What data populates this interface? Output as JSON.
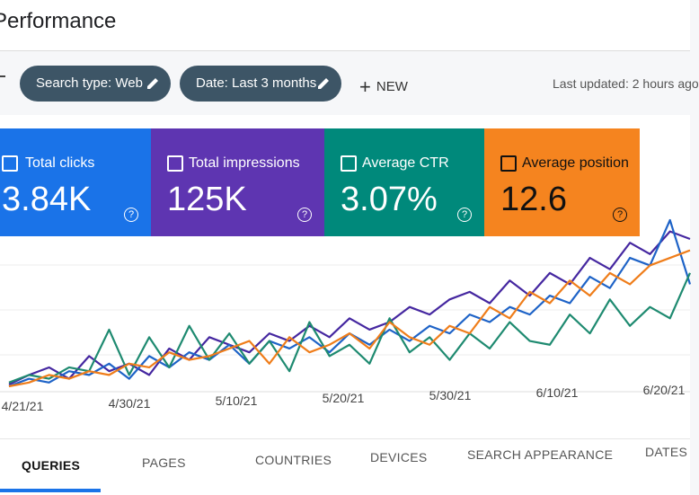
{
  "header": {
    "title": "Performance"
  },
  "filters": [
    "Search type: Web",
    "Date: Last 3 months"
  ],
  "new_button": "NEW",
  "last_updated": "Last updated: 2 hours ago",
  "metrics": [
    {
      "label": "Total clicks",
      "value": "3.84K",
      "color": "#1a73e8"
    },
    {
      "label": "Total impressions",
      "value": "125K",
      "color": "#5e35b1"
    },
    {
      "label": "Average CTR",
      "value": "3.07%",
      "color": "#00897b"
    },
    {
      "label": "Average position",
      "value": "12.6",
      "color": "#f5841f"
    }
  ],
  "chart_data": {
    "type": "line",
    "xticks": [
      "4/21/21",
      "4/30/21",
      "5/10/21",
      "5/20/21",
      "5/30/21",
      "6/10/21",
      "6/20/21"
    ],
    "series": [
      {
        "name": "Total impressions",
        "color": "#4527a0",
        "values": [
          3,
          8,
          12,
          6,
          18,
          10,
          14,
          8,
          22,
          16,
          28,
          24,
          20,
          30,
          26,
          34,
          28,
          38,
          32,
          36,
          44,
          40,
          48,
          52,
          46,
          58,
          50,
          62,
          56,
          70,
          64,
          78,
          72,
          84,
          80
        ]
      },
      {
        "name": "Total clicks",
        "color": "#1e63c7",
        "values": [
          2,
          6,
          4,
          10,
          8,
          14,
          6,
          18,
          12,
          20,
          16,
          24,
          14,
          26,
          22,
          28,
          20,
          30,
          24,
          32,
          26,
          34,
          30,
          40,
          36,
          44,
          40,
          50,
          46,
          60,
          54,
          70,
          66,
          90,
          56
        ]
      },
      {
        "name": "Average CTR",
        "color": "#1e8a70",
        "values": [
          4,
          8,
          6,
          12,
          10,
          32,
          8,
          28,
          12,
          34,
          16,
          30,
          14,
          26,
          10,
          36,
          18,
          24,
          14,
          38,
          20,
          28,
          16,
          30,
          22,
          36,
          26,
          24,
          40,
          30,
          48,
          34,
          44,
          38,
          62
        ]
      },
      {
        "name": "Average position",
        "color": "#ef7d1a",
        "values": [
          2,
          4,
          8,
          6,
          10,
          8,
          14,
          12,
          20,
          16,
          18,
          22,
          26,
          14,
          28,
          20,
          24,
          30,
          22,
          36,
          28,
          24,
          34,
          30,
          44,
          38,
          52,
          46,
          58,
          50,
          62,
          56,
          66,
          70,
          74
        ]
      }
    ]
  },
  "tabs": [
    "QUERIES",
    "PAGES",
    "COUNTRIES",
    "DEVICES",
    "SEARCH APPEARANCE",
    "DATES"
  ]
}
